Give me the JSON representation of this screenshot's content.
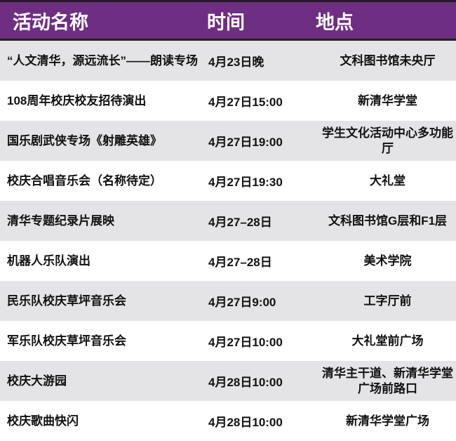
{
  "header": {
    "name": "活动名称",
    "time": "时间",
    "place": "地点"
  },
  "colors": {
    "header_bg": "#6e2f82",
    "row_alt": "#e4e4e6"
  },
  "rows": [
    {
      "name": "“人文清华，源远流长”——朗读专场",
      "time": "4月23日晚",
      "place": "文科图书馆未央厅"
    },
    {
      "name": "108周年校庆校友招待演出",
      "time": "4月27日15:00",
      "place": "新清华学堂"
    },
    {
      "name": "国乐剧武侠专场《射雕英雄》",
      "time": "4月27日19:00",
      "place": "学生文化活动中心多功能厅"
    },
    {
      "name": "校庆合唱音乐会（名称待定）",
      "time": "4月27日19:30",
      "place": "大礼堂"
    },
    {
      "name": "清华专题纪录片展映",
      "time": "4月27–28日",
      "place": "文科图书馆G层和F1层"
    },
    {
      "name": "机器人乐队演出",
      "time": "4月27–28日",
      "place": "美术学院"
    },
    {
      "name": "民乐队校庆草坪音乐会",
      "time": "4月27日9:00",
      "place": "工字厅前"
    },
    {
      "name": "军乐队校庆草坪音乐会",
      "time": "4月27日10:00",
      "place": "大礼堂前广场"
    },
    {
      "name": "校庆大游园",
      "time": "4月28日10:00",
      "place": "清华主干道、新清华学堂广场前路口"
    },
    {
      "name": "校庆歌曲快闪",
      "time": "4月28日10:00",
      "place": "新清华学堂广场"
    }
  ]
}
